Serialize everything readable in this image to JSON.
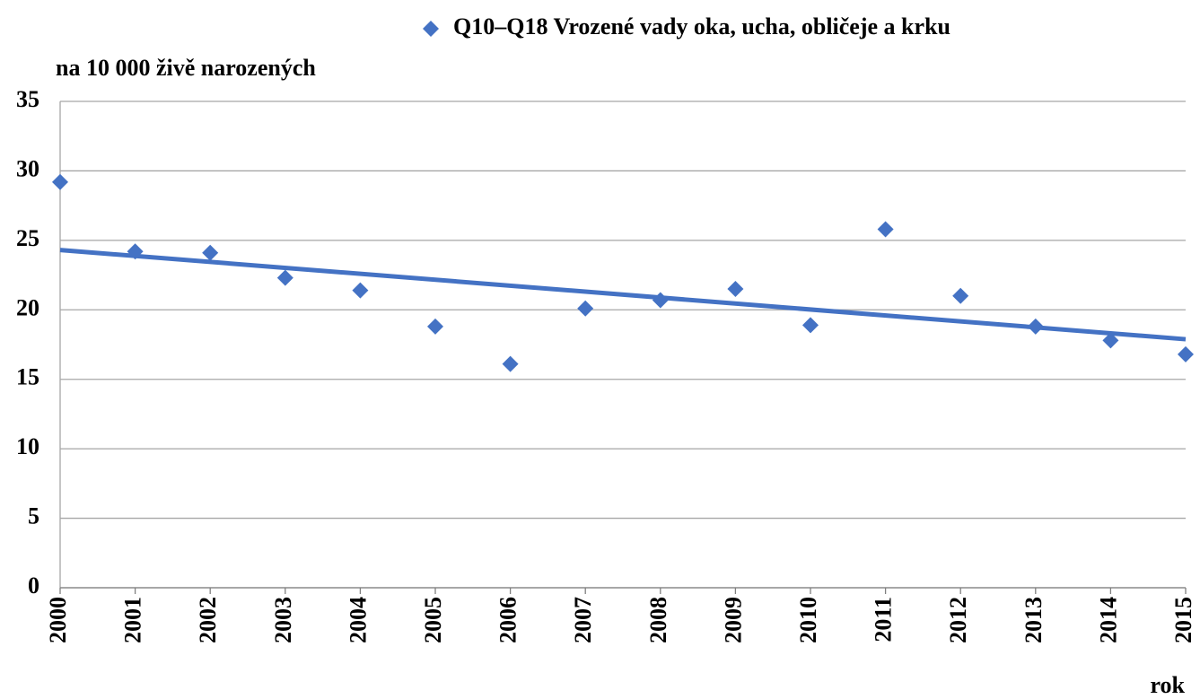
{
  "chart_data": {
    "type": "scatter",
    "legend_label": "Q10–Q18 Vrozené vady oka, ucha, obličeje a krku",
    "y_label": "na 10 000 živě narozených",
    "x_label": "rok",
    "x": [
      2000,
      2001,
      2002,
      2003,
      2004,
      2005,
      2006,
      2007,
      2008,
      2009,
      2010,
      2011,
      2012,
      2013,
      2014,
      2015
    ],
    "series": [
      {
        "name": "Q10–Q18 Vrozené vady oka, ucha, obličeje a krku",
        "color": "#4472c4",
        "values": [
          29.2,
          24.2,
          24.1,
          22.3,
          21.4,
          18.8,
          16.1,
          20.1,
          20.7,
          21.5,
          18.9,
          25.8,
          21.0,
          18.8,
          17.8,
          16.8
        ]
      }
    ],
    "xlim": [
      2000,
      2015
    ],
    "xticks": [
      2000,
      2001,
      2002,
      2003,
      2004,
      2005,
      2006,
      2007,
      2008,
      2009,
      2010,
      2011,
      2012,
      2013,
      2014,
      2015
    ],
    "ylim": [
      0,
      35
    ],
    "yticks": [
      0,
      5,
      10,
      15,
      20,
      25,
      30,
      35
    ],
    "grid": true,
    "trendline": "linear",
    "legend_position": "top"
  }
}
